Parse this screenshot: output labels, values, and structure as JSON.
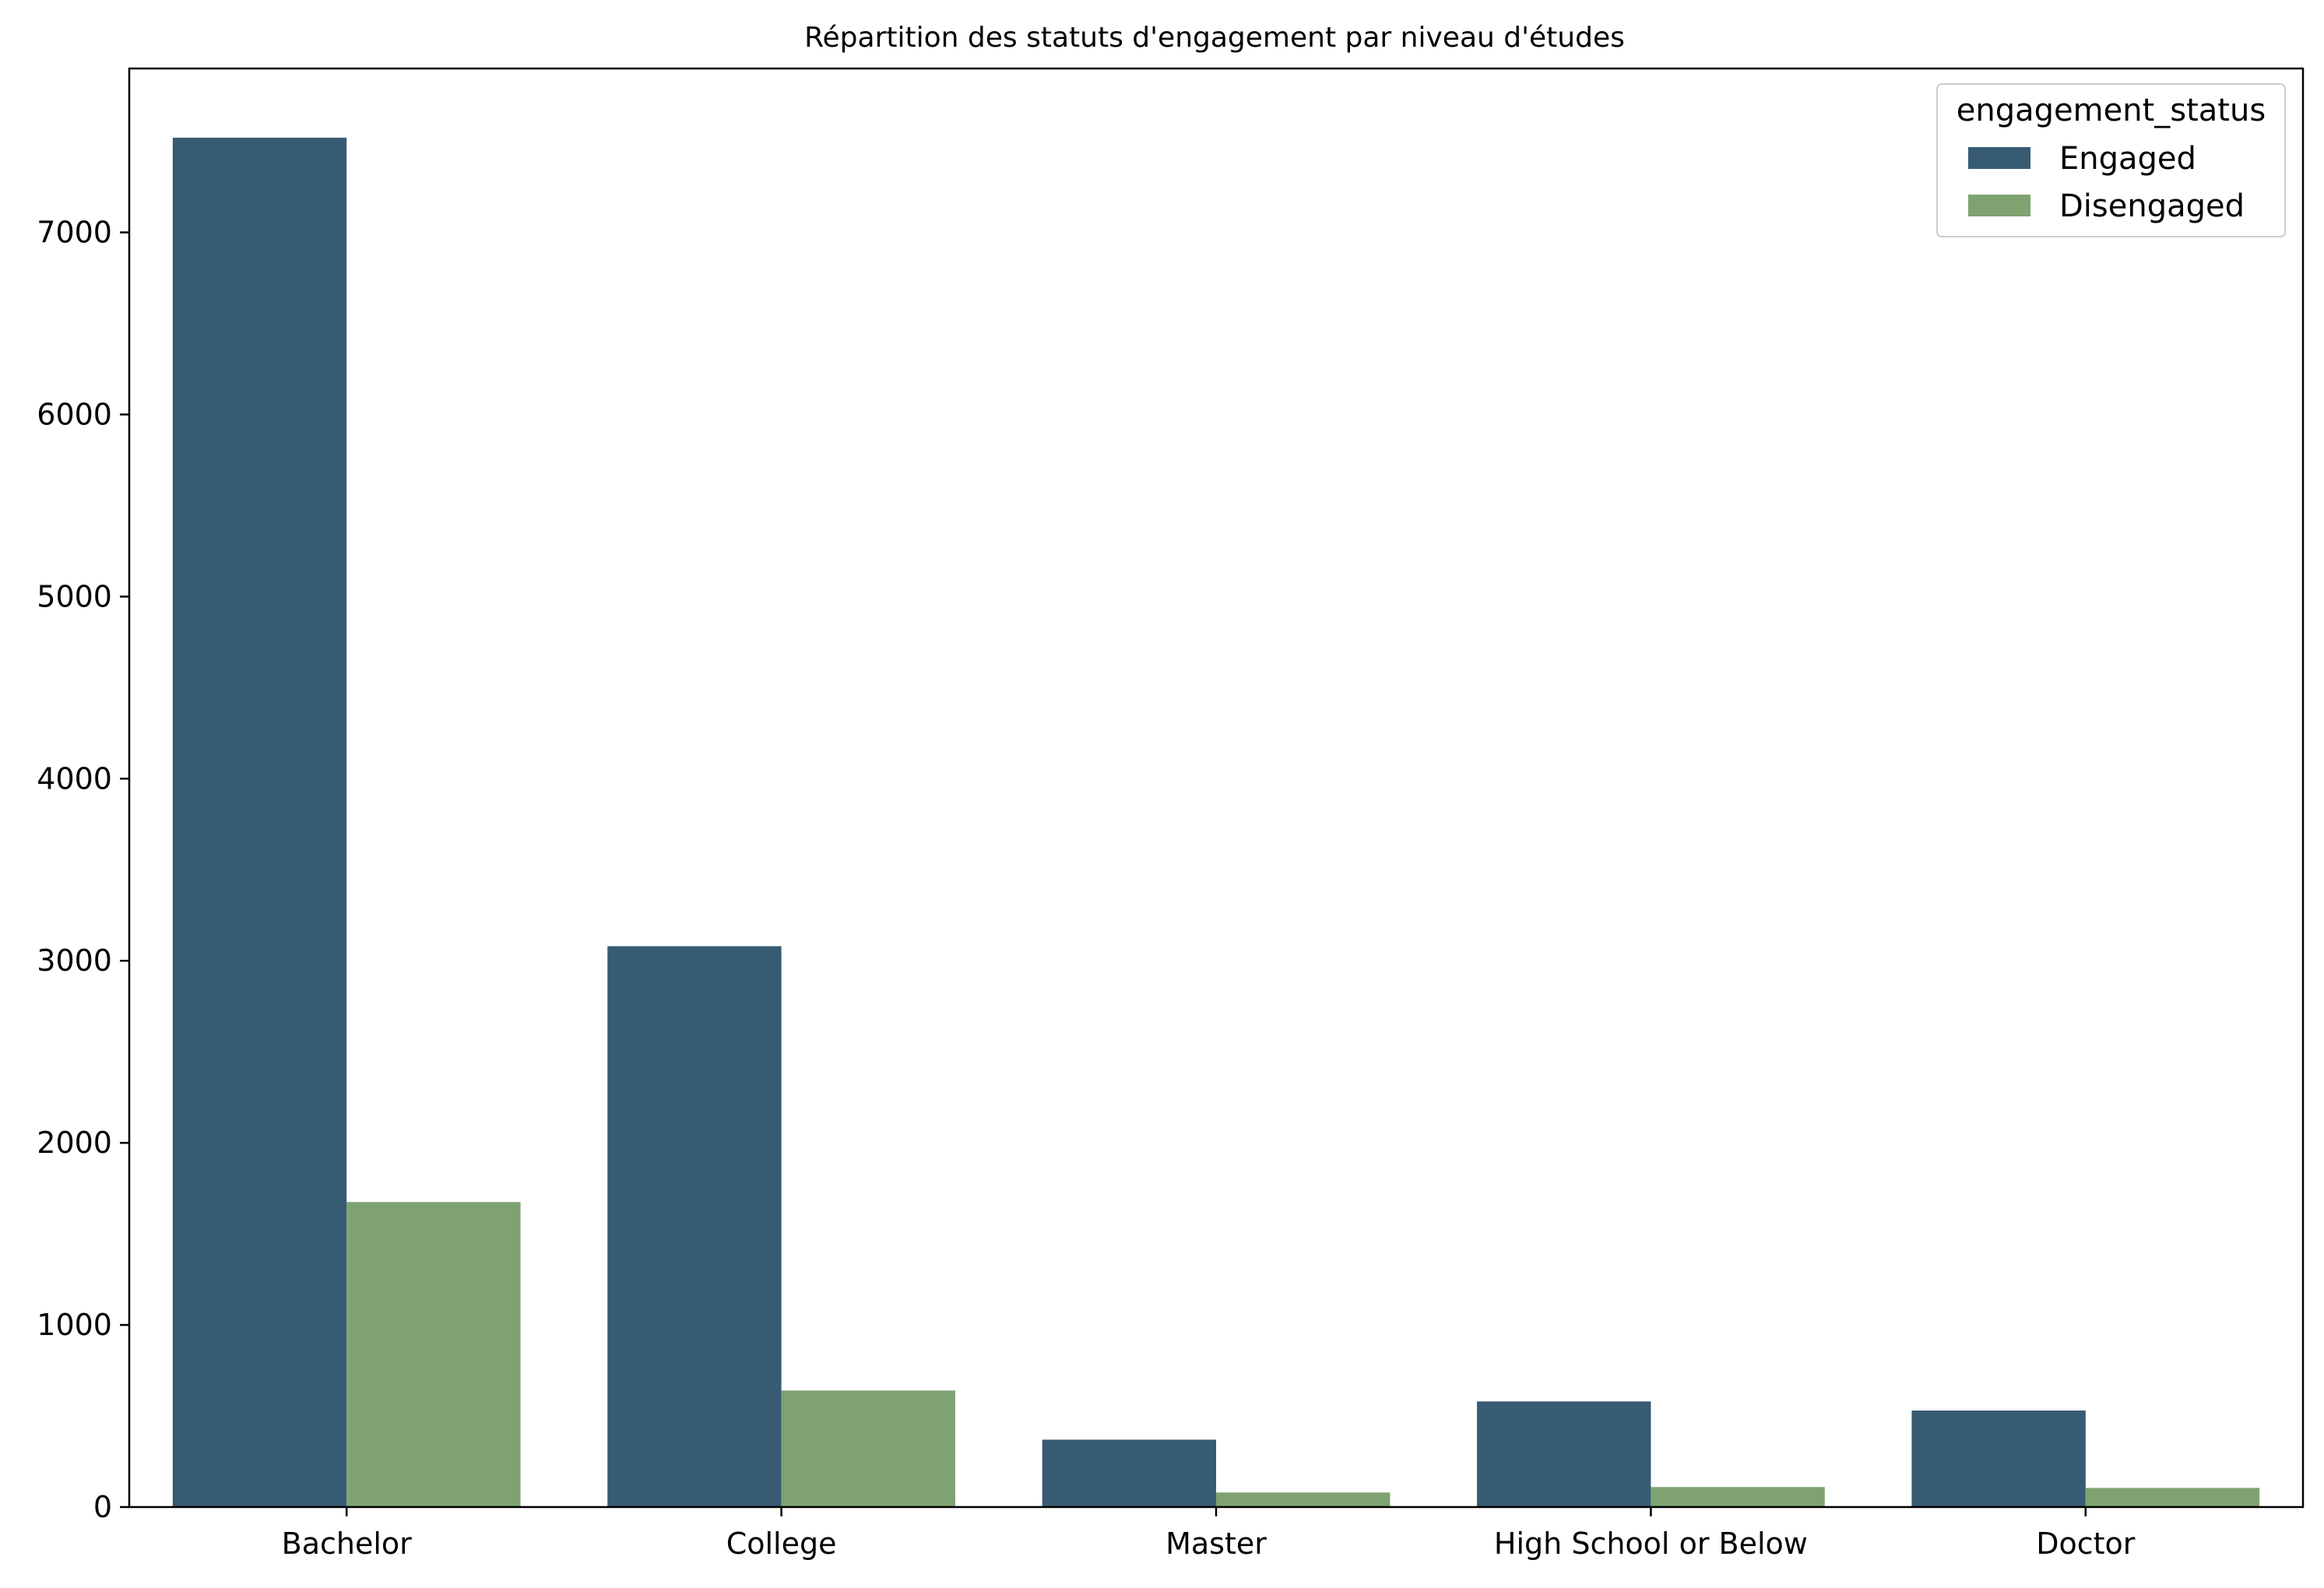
{
  "chart_data": {
    "type": "bar",
    "title": "Répartition des statuts d'engagement par niveau d'études",
    "xlabel": "",
    "ylabel": "",
    "categories": [
      "Bachelor",
      "College",
      "Master",
      "High School or Below",
      "Doctor"
    ],
    "series": [
      {
        "name": "Engaged",
        "color": "#365b73",
        "values": [
          7520,
          3080,
          370,
          580,
          530
        ]
      },
      {
        "name": "Disengaged",
        "color": "#7ea371",
        "values": [
          1675,
          640,
          80,
          110,
          105
        ]
      }
    ],
    "ylim": [
      0,
      7900
    ],
    "yticks": [
      0,
      1000,
      2000,
      3000,
      4000,
      5000,
      6000,
      7000
    ],
    "grid": false,
    "legend": {
      "title": "engagement_status",
      "placement": "top-right"
    }
  }
}
